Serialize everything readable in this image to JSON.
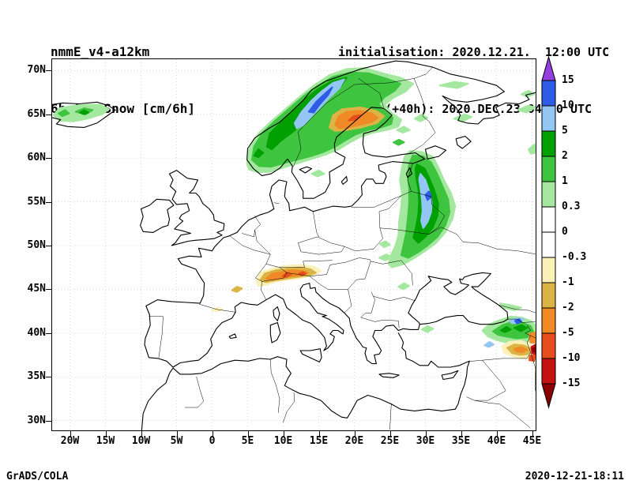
{
  "header": {
    "line1": "nmmE_v4-a12km",
    "line2": "6h Acc.Snow [cm/6h]",
    "init": "initialisation: 2020.12.21.  12:00 UTC",
    "valid": "valid(+40h): 2020.DEC.23 04:00 UTC"
  },
  "footer": {
    "left": "GrADS/COLA",
    "right": "2020-12-21-18:11"
  },
  "axes": {
    "lat_ticks": [
      {
        "label": "70N",
        "value": 70
      },
      {
        "label": "65N",
        "value": 65
      },
      {
        "label": "60N",
        "value": 60
      },
      {
        "label": "55N",
        "value": 55
      },
      {
        "label": "50N",
        "value": 50
      },
      {
        "label": "45N",
        "value": 45
      },
      {
        "label": "40N",
        "value": 40
      },
      {
        "label": "35N",
        "value": 35
      },
      {
        "label": "30N",
        "value": 30
      }
    ],
    "lon_ticks": [
      {
        "label": "20W",
        "value": -20
      },
      {
        "label": "15W",
        "value": -15
      },
      {
        "label": "10W",
        "value": -10
      },
      {
        "label": "5W",
        "value": -5
      },
      {
        "label": "0",
        "value": 0
      },
      {
        "label": "5E",
        "value": 5
      },
      {
        "label": "10E",
        "value": 10
      },
      {
        "label": "15E",
        "value": 15
      },
      {
        "label": "20E",
        "value": 20
      },
      {
        "label": "25E",
        "value": 25
      },
      {
        "label": "30E",
        "value": 30
      },
      {
        "label": "35E",
        "value": 35
      },
      {
        "label": "40E",
        "value": 40
      },
      {
        "label": "45E",
        "value": 45
      }
    ]
  },
  "colorbar": {
    "labels": [
      "15",
      "10",
      "5",
      "2",
      "1",
      "0.3",
      "0",
      "-0.3",
      "-1",
      "-2",
      "-5",
      "-10",
      "-15"
    ],
    "colors": [
      "#9440e0",
      "#2e5ce6",
      "#93c6f2",
      "#00a000",
      "#3fc43f",
      "#a4e8a0",
      "#ffffff",
      "#ffffff",
      "#faf0b8",
      "#dcb345",
      "#ef8a26",
      "#e64f1d",
      "#c41212",
      "#8b0000"
    ]
  },
  "chart_data": {
    "type": "map",
    "title": "6h Acc.Snow [cm/6h]",
    "model": "nmmE_v4-a12km",
    "initialisation": "2020.12.21 12:00 UTC",
    "valid": "2020.DEC.23 04:00 UTC (+40h)",
    "units": "cm/6h",
    "projection": "latlon",
    "lon_range": [
      -22.5,
      45.5
    ],
    "lat_range": [
      29,
      71.3
    ],
    "contour_levels": [
      -15,
      -10,
      -5,
      -2,
      -1,
      -0.3,
      0,
      0.3,
      1,
      2,
      5,
      10,
      15
    ],
    "depicted_regions": [
      {
        "area": "Norway / Scandinavian mountains",
        "snow_cm": "0.3 to 15"
      },
      {
        "area": "NW Gulf of Bothnia (Swedish Lapland coast)",
        "snow_cm": "-1 to -5"
      },
      {
        "area": "NW Russia - Belarus - W Ukraine meridional band (~27-34E, 48-61N)",
        "snow_cm": "0.3 to 10"
      },
      {
        "area": "N Iceland",
        "snow_cm": "0.3 to 5"
      },
      {
        "area": "Alps",
        "snow_cm": "-0.3 to -10"
      },
      {
        "area": "E Turkey / Caucasus",
        "snow_cm": "0.3 to 15 and -0.3 to -15 near 45E"
      },
      {
        "area": "Finland and White Sea area (scattered)",
        "snow_cm": "0.3 to 1"
      },
      {
        "area": "Carpathians / Romania (scattered)",
        "snow_cm": "0.3 to 1"
      }
    ]
  }
}
